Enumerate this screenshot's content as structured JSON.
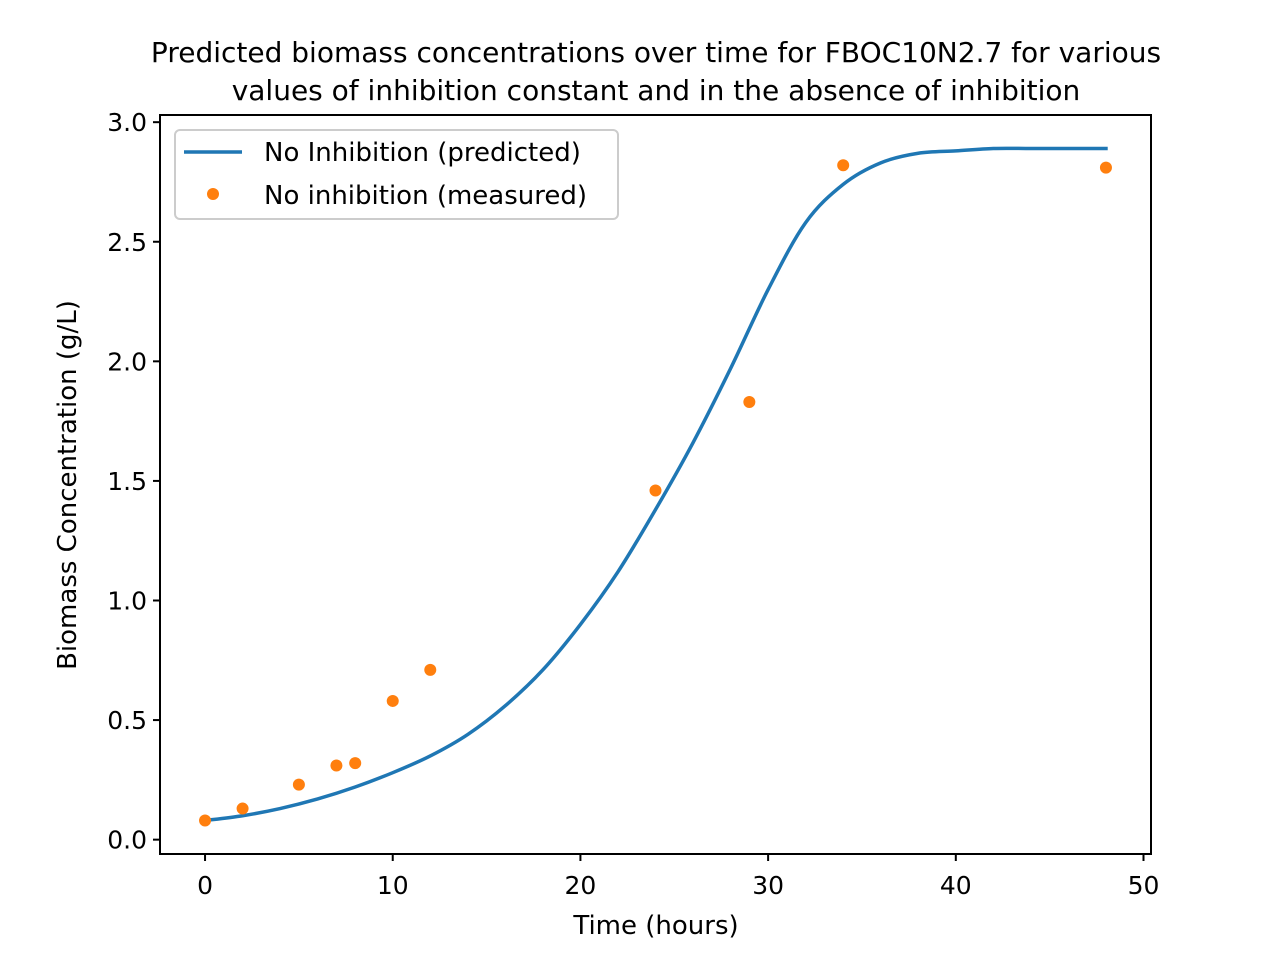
{
  "chart_data": {
    "type": "line",
    "title_lines": [
      "Predicted biomass concentrations over time for FBOC10N2.7 for various",
      "values of inhibition constant and in the absence of inhibition"
    ],
    "xlabel": "Time (hours)",
    "ylabel": "Biomass Concentration (g/L)",
    "xlim": [
      -2.4,
      50.4
    ],
    "ylim": [
      -0.06,
      3.03
    ],
    "x_ticks": [
      0,
      10,
      20,
      30,
      40,
      50
    ],
    "x_tick_labels": [
      "0",
      "10",
      "20",
      "30",
      "40",
      "50"
    ],
    "y_ticks": [
      0.0,
      0.5,
      1.0,
      1.5,
      2.0,
      2.5,
      3.0
    ],
    "y_tick_labels": [
      "0.0",
      "0.5",
      "1.0",
      "1.5",
      "2.0",
      "2.5",
      "3.0"
    ],
    "grid": false,
    "legend_position": "top-left",
    "series": [
      {
        "name": "No Inhibition (predicted)",
        "kind": "line",
        "color": "#1f77b4",
        "x": [
          0,
          2,
          4,
          6,
          8,
          10,
          12,
          14,
          16,
          18,
          20,
          22,
          24,
          26,
          28,
          30,
          32,
          34,
          36,
          38,
          40,
          42,
          44,
          46,
          48
        ],
        "y": [
          0.08,
          0.1,
          0.13,
          0.17,
          0.22,
          0.28,
          0.35,
          0.44,
          0.56,
          0.71,
          0.9,
          1.12,
          1.38,
          1.66,
          1.97,
          2.3,
          2.58,
          2.74,
          2.83,
          2.87,
          2.88,
          2.89,
          2.89,
          2.89,
          2.89
        ]
      },
      {
        "name": "No inhibition (measured)",
        "kind": "scatter",
        "color": "#ff7f0e",
        "x": [
          0,
          2,
          5,
          7,
          8,
          10,
          12,
          24,
          29,
          34,
          48
        ],
        "y": [
          0.08,
          0.13,
          0.23,
          0.31,
          0.32,
          0.58,
          0.71,
          1.46,
          1.83,
          2.82,
          2.81
        ]
      }
    ]
  }
}
